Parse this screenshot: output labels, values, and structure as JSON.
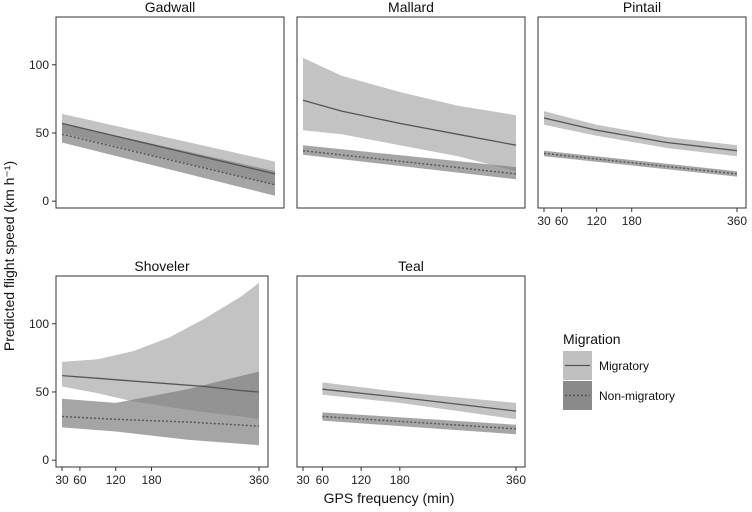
{
  "chart_data": {
    "type": "line",
    "xlabel": "GPS frequency (min)",
    "ylabel": "Predicted flight speed (km h⁻¹)",
    "xlim": [
      15,
      375
    ],
    "ylim": [
      -5,
      135
    ],
    "x_ticks": [
      30,
      60,
      120,
      180,
      360
    ],
    "x_tick_labels": [
      "30",
      "60",
      "120",
      "180",
      "360"
    ],
    "y_ticks": [
      0,
      50,
      100
    ],
    "y_tick_labels": [
      "0",
      "50",
      "100"
    ],
    "grid": false,
    "legend": {
      "title": "Migration",
      "placement": "right",
      "entries": [
        {
          "name": "Migratory",
          "fill": "#c0c0c0",
          "line": "solid"
        },
        {
          "name": "Non-migratory",
          "fill": "#8a8a8a",
          "line": "dashed"
        }
      ]
    },
    "colors": {
      "migratory_band": "#c0c0c0",
      "nonmigratory_band": "#7f7f7f",
      "migratory_line": "#555555",
      "nonmigratory_line": "#555555"
    },
    "panels": [
      {
        "title": "Gadwall",
        "series": [
          {
            "name": "Migratory",
            "x": [
              30,
              360
            ],
            "values": [
              57,
              20
            ],
            "lower": [
              50,
              12
            ],
            "upper": [
              64,
              29
            ]
          },
          {
            "name": "Non-migratory",
            "x": [
              30,
              360
            ],
            "values": [
              49,
              12
            ],
            "lower": [
              43,
              4
            ],
            "upper": [
              57,
              22
            ]
          }
        ]
      },
      {
        "title": "Mallard",
        "series": [
          {
            "name": "Migratory",
            "x": [
              30,
              90,
              180,
              270,
              360
            ],
            "values": [
              74,
              66,
              57,
              49,
              41
            ],
            "lower": [
              52,
              49,
              41,
              33,
              22
            ],
            "upper": [
              105,
              92,
              80,
              70,
              63
            ]
          },
          {
            "name": "Non-migratory",
            "x": [
              30,
              360
            ],
            "values": [
              37,
              20
            ],
            "lower": [
              34,
              16
            ],
            "upper": [
              41,
              25
            ]
          }
        ]
      },
      {
        "title": "Pintail",
        "series": [
          {
            "name": "Migratory",
            "x": [
              30,
              120,
              240,
              360
            ],
            "values": [
              61,
              52,
              43,
              37
            ],
            "lower": [
              56,
              48,
              39,
              33
            ],
            "upper": [
              66,
              56,
              47,
              41
            ]
          },
          {
            "name": "Non-migratory",
            "x": [
              30,
              360
            ],
            "values": [
              35,
              20
            ],
            "lower": [
              33,
              18
            ],
            "upper": [
              37,
              22
            ]
          }
        ]
      },
      {
        "title": "Shoveler",
        "series": [
          {
            "name": "Migratory",
            "x": [
              30,
              90,
              150,
              210,
              270,
              330,
              360
            ],
            "values": [
              62,
              60,
              58,
              56,
              54,
              51,
              50
            ],
            "lower": [
              54,
              49,
              43,
              39,
              35,
              32,
              30
            ],
            "upper": [
              72,
              74,
              80,
              90,
              104,
              120,
              130
            ]
          },
          {
            "name": "Non-migratory",
            "x": [
              30,
              120,
              240,
              360
            ],
            "values": [
              32,
              30,
              28,
              25
            ],
            "lower": [
              24,
              21,
              15,
              11
            ],
            "upper": [
              45,
              42,
              52,
              65
            ]
          }
        ]
      },
      {
        "title": "Teal",
        "series": [
          {
            "name": "Migratory",
            "x": [
              60,
              180,
              360
            ],
            "values": [
              52,
              46,
              36
            ],
            "lower": [
              48,
              42,
              30
            ],
            "upper": [
              57,
              50,
              42
            ]
          },
          {
            "name": "Non-migratory",
            "x": [
              60,
              360
            ],
            "values": [
              32,
              23
            ],
            "lower": [
              29,
              19
            ],
            "upper": [
              35,
              26
            ]
          }
        ]
      }
    ]
  }
}
